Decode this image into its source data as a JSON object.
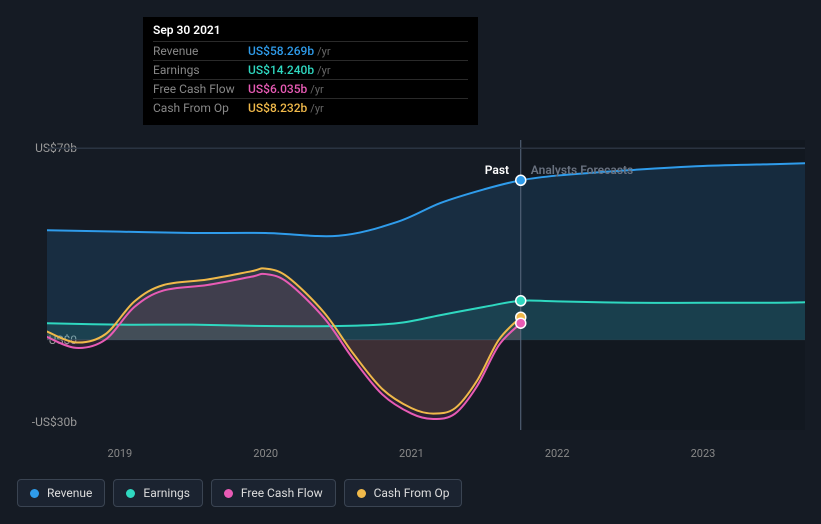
{
  "tooltip": {
    "date": "Sep 30 2021",
    "rows": [
      {
        "label": "Revenue",
        "value": "US$58.269b",
        "unit": "/yr",
        "color": "#2f9ceb"
      },
      {
        "label": "Earnings",
        "value": "US$14.240b",
        "unit": "/yr",
        "color": "#2fd8c0"
      },
      {
        "label": "Free Cash Flow",
        "value": "US$6.035b",
        "unit": "/yr",
        "color": "#e85bb5"
      },
      {
        "label": "Cash From Op",
        "value": "US$8.232b",
        "unit": "/yr",
        "color": "#f0b94a"
      }
    ]
  },
  "sections": {
    "past": "Past",
    "forecasts": "Analysts Forecasts"
  },
  "yaxis": {
    "labels": [
      {
        "text": "US$70b",
        "v": 70
      },
      {
        "text": "US$0",
        "v": 0
      },
      {
        "text": "-US$30b",
        "v": -30
      }
    ],
    "min": -33,
    "max": 73
  },
  "xaxis": {
    "labels": [
      "2019",
      "2020",
      "2021",
      "2022",
      "2023"
    ],
    "min": 2018.5,
    "max": 2023.7
  },
  "cursor_x": 2021.75,
  "background_color": "#151b24",
  "plot_divider_color": "#2a3442",
  "series": [
    {
      "name": "Revenue",
      "color": "#2f9ceb",
      "fill_opacity": 0.15,
      "line_width": 2,
      "has_forecast": true,
      "data": [
        [
          2018.5,
          40
        ],
        [
          2019,
          39.5
        ],
        [
          2019.5,
          39
        ],
        [
          2020,
          39
        ],
        [
          2020.5,
          38
        ],
        [
          2020.9,
          43
        ],
        [
          2021.2,
          50
        ],
        [
          2021.5,
          55
        ],
        [
          2021.75,
          58.27
        ],
        [
          2022,
          60
        ],
        [
          2022.5,
          62
        ],
        [
          2023,
          63.5
        ],
        [
          2023.5,
          64.2
        ],
        [
          2023.7,
          64.5
        ]
      ],
      "marker_at_cursor": 58.27
    },
    {
      "name": "Earnings",
      "color": "#2fd8c0",
      "fill_opacity": 0.12,
      "line_width": 2,
      "has_forecast": true,
      "data": [
        [
          2018.5,
          6
        ],
        [
          2019,
          5.5
        ],
        [
          2019.5,
          5.5
        ],
        [
          2020,
          5
        ],
        [
          2020.5,
          5
        ],
        [
          2020.9,
          6
        ],
        [
          2021.2,
          9
        ],
        [
          2021.5,
          12
        ],
        [
          2021.75,
          14.24
        ],
        [
          2022,
          14
        ],
        [
          2022.5,
          13.5
        ],
        [
          2023,
          13.5
        ],
        [
          2023.5,
          13.5
        ],
        [
          2023.7,
          13.7
        ]
      ],
      "marker_at_cursor": 14.24
    },
    {
      "name": "Cash From Op",
      "color": "#f0b94a",
      "fill_opacity": 0.1,
      "line_width": 2,
      "has_forecast": false,
      "data": [
        [
          2018.5,
          3
        ],
        [
          2018.7,
          -1
        ],
        [
          2018.9,
          2
        ],
        [
          2019.1,
          14
        ],
        [
          2019.3,
          20
        ],
        [
          2019.6,
          22
        ],
        [
          2019.9,
          25
        ],
        [
          2020.0,
          26
        ],
        [
          2020.15,
          23
        ],
        [
          2020.4,
          10
        ],
        [
          2020.6,
          -5
        ],
        [
          2020.8,
          -18
        ],
        [
          2021.0,
          -25
        ],
        [
          2021.15,
          -27
        ],
        [
          2021.3,
          -25
        ],
        [
          2021.45,
          -15
        ],
        [
          2021.6,
          0
        ],
        [
          2021.75,
          8.23
        ]
      ],
      "marker_at_cursor": 8.23
    },
    {
      "name": "Free Cash Flow",
      "color": "#e85bb5",
      "fill_opacity": 0.1,
      "line_width": 2,
      "has_forecast": false,
      "data": [
        [
          2018.5,
          1
        ],
        [
          2018.7,
          -3
        ],
        [
          2018.9,
          0
        ],
        [
          2019.1,
          12
        ],
        [
          2019.3,
          18
        ],
        [
          2019.6,
          20
        ],
        [
          2019.9,
          23
        ],
        [
          2020.0,
          24
        ],
        [
          2020.15,
          21
        ],
        [
          2020.4,
          8
        ],
        [
          2020.6,
          -7
        ],
        [
          2020.8,
          -20
        ],
        [
          2021.0,
          -27
        ],
        [
          2021.15,
          -29
        ],
        [
          2021.3,
          -27
        ],
        [
          2021.45,
          -17
        ],
        [
          2021.6,
          -2
        ],
        [
          2021.75,
          6.04
        ]
      ],
      "marker_at_cursor": 6.04
    }
  ],
  "legend": [
    {
      "label": "Revenue",
      "color": "#2f9ceb"
    },
    {
      "label": "Earnings",
      "color": "#2fd8c0"
    },
    {
      "label": "Free Cash Flow",
      "color": "#e85bb5"
    },
    {
      "label": "Cash From Op",
      "color": "#f0b94a"
    }
  ]
}
